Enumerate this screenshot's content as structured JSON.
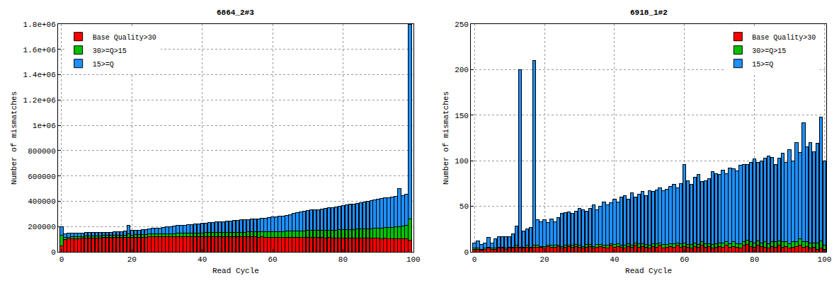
{
  "chart_data": [
    {
      "type": "bar",
      "title": "6864_2#3",
      "x_label": "Read Cycle",
      "y_label": "Number of mismatches",
      "stacked": true,
      "grid": true,
      "legend": "upper left",
      "xlim": [
        -1,
        100
      ],
      "xticks": [
        0,
        20,
        40,
        60,
        80,
        100
      ],
      "ylim": [
        0,
        1800000
      ],
      "yticks": [
        0,
        200000,
        400000,
        600000,
        800000,
        {
          "value": 1000000,
          "label": "1e+06"
        },
        {
          "value": 1200000,
          "label": "1.2e+06"
        },
        {
          "value": 1400000,
          "label": "1.4e+06"
        },
        {
          "value": 1600000,
          "label": "1.6e+06"
        },
        {
          "value": 1800000,
          "label": "1.8e+06"
        }
      ],
      "x": [
        0,
        1,
        2,
        3,
        4,
        5,
        6,
        7,
        8,
        9,
        10,
        11,
        12,
        13,
        14,
        15,
        16,
        17,
        18,
        19,
        20,
        21,
        22,
        23,
        24,
        25,
        26,
        27,
        28,
        29,
        30,
        31,
        32,
        33,
        34,
        35,
        36,
        37,
        38,
        39,
        40,
        41,
        42,
        43,
        44,
        45,
        46,
        47,
        48,
        49,
        50,
        51,
        52,
        53,
        54,
        55,
        56,
        57,
        58,
        59,
        60,
        61,
        62,
        63,
        64,
        65,
        66,
        67,
        68,
        69,
        70,
        71,
        72,
        73,
        74,
        75,
        76,
        77,
        78,
        79,
        80,
        81,
        82,
        83,
        84,
        85,
        86,
        87,
        88,
        89,
        90,
        91,
        92,
        93,
        94,
        95,
        96,
        97,
        98,
        99
      ],
      "series": [
        {
          "name": "Base Quality>30",
          "color": "#ff0000",
          "values": [
            50000,
            100000,
            102000,
            104000,
            105000,
            106000,
            107000,
            108000,
            109000,
            110000,
            110000,
            111000,
            112000,
            112000,
            113000,
            113000,
            114000,
            114000,
            115000,
            115000,
            115000,
            116000,
            116000,
            117000,
            117000,
            118000,
            118000,
            118000,
            119000,
            119000,
            120000,
            120000,
            120000,
            121000,
            120000,
            121000,
            120000,
            121000,
            120000,
            121000,
            120000,
            121000,
            120000,
            120000,
            121000,
            120000,
            119000,
            120000,
            119000,
            120000,
            119000,
            119000,
            118000,
            119000,
            118000,
            118000,
            117000,
            118000,
            117000,
            116000,
            117000,
            116000,
            116000,
            115000,
            116000,
            115000,
            114000,
            115000,
            114000,
            113000,
            114000,
            113000,
            112000,
            113000,
            112000,
            111000,
            112000,
            111000,
            110000,
            111000,
            110000,
            110000,
            109000,
            110000,
            109000,
            108000,
            109000,
            108000,
            107000,
            108000,
            107000,
            106000,
            107000,
            106000,
            105000,
            106000,
            105000,
            104000,
            103000,
            90000
          ]
        },
        {
          "name": "30>=Q>15",
          "color": "#00c000",
          "values": [
            80000,
            14000,
            15000,
            15000,
            16000,
            15000,
            16000,
            16000,
            17000,
            16000,
            17000,
            17000,
            18000,
            17000,
            18000,
            18000,
            19000,
            18000,
            19000,
            25000,
            19000,
            20000,
            20000,
            21000,
            21000,
            22000,
            22000,
            23000,
            23000,
            24000,
            24000,
            25000,
            25000,
            26000,
            26000,
            27000,
            27000,
            28000,
            28000,
            29000,
            29000,
            30000,
            31000,
            31000,
            32000,
            33000,
            33000,
            34000,
            35000,
            35000,
            36000,
            37000,
            38000,
            38000,
            39000,
            40000,
            41000,
            42000,
            42000,
            43000,
            44000,
            45000,
            46000,
            47000,
            48000,
            49000,
            50000,
            51000,
            52000,
            53000,
            54000,
            55000,
            56000,
            57000,
            58000,
            59000,
            60000,
            61000,
            62000,
            63000,
            64000,
            66000,
            67000,
            68000,
            70000,
            71000,
            73000,
            74000,
            76000,
            78000,
            80000,
            82000,
            84000,
            86000,
            88000,
            90000,
            95000,
            100000,
            105000,
            170000
          ]
        },
        {
          "name": "15>=Q",
          "color": "#1e90ff",
          "values": [
            70000,
            30000,
            29000,
            27000,
            27000,
            27000,
            27000,
            27000,
            26000,
            26000,
            26000,
            25000,
            24000,
            26000,
            25000,
            27000,
            27000,
            29000,
            29000,
            70000,
            34000,
            34000,
            36000,
            37000,
            40000,
            40000,
            45000,
            47000,
            48000,
            52000,
            54000,
            55000,
            60000,
            61000,
            64000,
            64000,
            68000,
            69000,
            72000,
            72000,
            76000,
            77000,
            79000,
            81000,
            82000,
            84000,
            88000,
            88000,
            91000,
            92000,
            95000,
            96000,
            99000,
            98000,
            101000,
            102000,
            104000,
            105000,
            109000,
            111000,
            114000,
            117000,
            118000,
            123000,
            124000,
            131000,
            141000,
            144000,
            149000,
            154000,
            157000,
            162000,
            167000,
            165000,
            170000,
            175000,
            178000,
            180000,
            183000,
            186000,
            191000,
            194000,
            199000,
            202000,
            206000,
            211000,
            213000,
            218000,
            222000,
            224000,
            228000,
            232000,
            234000,
            238000,
            242000,
            244000,
            300000,
            241000,
            247000,
            1540000
          ]
        }
      ]
    },
    {
      "type": "bar",
      "title": "6918_1#2",
      "x_label": "Read Cycle",
      "y_label": "Number of mismatches",
      "stacked": true,
      "grid": true,
      "legend": "upper right",
      "xlim": [
        -1,
        100.5
      ],
      "xticks": [
        0,
        20,
        40,
        60,
        80,
        100
      ],
      "ylim": [
        0,
        250
      ],
      "yticks": [
        0,
        50,
        100,
        150,
        200,
        250
      ],
      "x": [
        0,
        1,
        2,
        3,
        4,
        5,
        6,
        7,
        8,
        9,
        10,
        11,
        12,
        13,
        14,
        15,
        16,
        17,
        18,
        19,
        20,
        21,
        22,
        23,
        24,
        25,
        26,
        27,
        28,
        29,
        30,
        31,
        32,
        33,
        34,
        35,
        36,
        37,
        38,
        39,
        40,
        41,
        42,
        43,
        44,
        45,
        46,
        47,
        48,
        49,
        50,
        51,
        52,
        53,
        54,
        55,
        56,
        57,
        58,
        59,
        60,
        61,
        62,
        63,
        64,
        65,
        66,
        67,
        68,
        69,
        70,
        71,
        72,
        73,
        74,
        75,
        76,
        77,
        78,
        79,
        80,
        81,
        82,
        83,
        84,
        85,
        86,
        87,
        88,
        89,
        90,
        91,
        92,
        93,
        94,
        95,
        96,
        97,
        98,
        99,
        100
      ],
      "series": [
        {
          "name": "Base Quality>30",
          "color": "#ff0000",
          "values": [
            3,
            3,
            2,
            3,
            4,
            3,
            3,
            4,
            4,
            3,
            4,
            4,
            5,
            4,
            4,
            5,
            4,
            5,
            5,
            5,
            4,
            6,
            5,
            5,
            6,
            4,
            5,
            6,
            5,
            6,
            5,
            4,
            5,
            6,
            4,
            5,
            6,
            5,
            4,
            7,
            5,
            6,
            5,
            4,
            6,
            5,
            7,
            5,
            6,
            5,
            4,
            6,
            5,
            7,
            4,
            5,
            6,
            5,
            7,
            5,
            6,
            5,
            4,
            6,
            5,
            7,
            5,
            6,
            4,
            5,
            6,
            5,
            7,
            5,
            6,
            5,
            4,
            7,
            8,
            6,
            5,
            7,
            6,
            5,
            4,
            6,
            5,
            7,
            5,
            6,
            4,
            5,
            6,
            7,
            5,
            6,
            4,
            5,
            3,
            4,
            3
          ]
        },
        {
          "name": "30>=Q>15",
          "color": "#00c000",
          "values": [
            1,
            1,
            1,
            1,
            1,
            1,
            1,
            1,
            1,
            1,
            1,
            1,
            2,
            1,
            1,
            2,
            1,
            2,
            2,
            1,
            2,
            1,
            2,
            2,
            1,
            2,
            2,
            1,
            2,
            2,
            2,
            2,
            3,
            2,
            2,
            3,
            2,
            2,
            3,
            2,
            3,
            3,
            2,
            3,
            3,
            2,
            3,
            4,
            3,
            3,
            3,
            3,
            4,
            3,
            4,
            3,
            3,
            4,
            3,
            4,
            4,
            3,
            4,
            4,
            3,
            4,
            4,
            3,
            4,
            4,
            4,
            5,
            4,
            4,
            5,
            4,
            5,
            4,
            5,
            5,
            5,
            5,
            4,
            6,
            5,
            5,
            6,
            5,
            6,
            5,
            5,
            6,
            5,
            7,
            6,
            5,
            6,
            5,
            7,
            8,
            4
          ]
        },
        {
          "name": "15>=Q",
          "color": "#1e90ff",
          "values": [
            6,
            8,
            5,
            6,
            11,
            6,
            10,
            12,
            12,
            13,
            12,
            15,
            21,
            195,
            18,
            18,
            22,
            203,
            28,
            27,
            29,
            25,
            29,
            26,
            31,
            36,
            36,
            37,
            35,
            37,
            41,
            40,
            37,
            40,
            46,
            38,
            42,
            48,
            45,
            45,
            50,
            46,
            53,
            55,
            49,
            58,
            50,
            54,
            57,
            54,
            60,
            57,
            59,
            60,
            59,
            61,
            63,
            65,
            60,
            66,
            86,
            70,
            66,
            72,
            77,
            66,
            69,
            71,
            80,
            77,
            75,
            80,
            75,
            83,
            80,
            80,
            86,
            85,
            83,
            87,
            92,
            86,
            90,
            92,
            96,
            93,
            85,
            91,
            97,
            87,
            103,
            89,
            109,
            95,
            131,
            104,
            110,
            100,
            109,
            136,
            93
          ]
        }
      ]
    }
  ]
}
